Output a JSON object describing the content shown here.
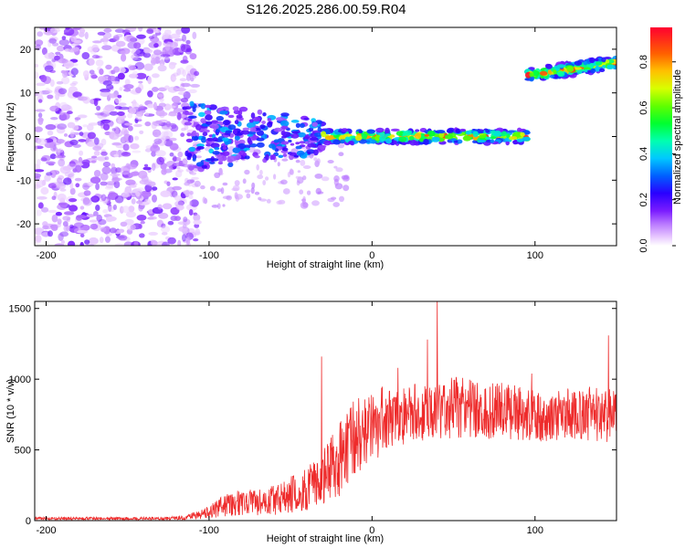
{
  "figure": {
    "title": "S126.2025.286.00.59.R04"
  },
  "chart_data": [
    {
      "type": "heatmap",
      "title": "S126.2025.286.00.59.R04",
      "xlabel": "Height of straight line (km)",
      "ylabel": "Frequency (Hz)",
      "xlim": [
        -207,
        150
      ],
      "ylim": [
        -25,
        25
      ],
      "xticks": [
        -200,
        -100,
        0,
        100
      ],
      "yticks": [
        -20,
        -10,
        0,
        10,
        20
      ],
      "colorbar": {
        "label": "Normalized spectral amplitude",
        "range": [
          0,
          0.95
        ],
        "ticks": [
          0.0,
          0.2,
          0.4,
          0.6,
          0.8
        ],
        "tick_labels": [
          "0.0",
          "0.2",
          "0.4",
          "0.6",
          "0.8"
        ]
      },
      "signal_ridge": [
        {
          "x_range": [
            -115,
            -30
          ],
          "freq_center": 0,
          "freq_spread": 8,
          "note": "scattered blobs"
        },
        {
          "x_range": [
            -30,
            95
          ],
          "freq_center": 0,
          "freq_spread": 1.5,
          "peak_amplitude": 0.9
        },
        {
          "x_range": [
            95,
            150
          ],
          "freq_start": 14,
          "freq_end": 17,
          "peak_amplitude": 0.9
        }
      ],
      "noise_region": {
        "x_range": [
          -207,
          -115
        ],
        "freq_range": [
          -25,
          25
        ]
      }
    },
    {
      "type": "line",
      "xlabel": "Height of straight line (km)",
      "ylabel": "SNR (10 * v/v)",
      "xlim": [
        -207,
        150
      ],
      "ylim": [
        0,
        1550
      ],
      "xticks": [
        -200,
        -100,
        0,
        100
      ],
      "yticks": [
        0,
        500,
        1000,
        1500
      ],
      "line_color": "#ee2b2b",
      "series": [
        {
          "name": "SNR",
          "x": [
            -207,
            -190,
            -170,
            -150,
            -130,
            -115,
            -100,
            -90,
            -80,
            -70,
            -60,
            -50,
            -40,
            -30,
            -25,
            -20,
            -15,
            -10,
            -5,
            0,
            10,
            20,
            30,
            40,
            50,
            60,
            70,
            80,
            90,
            100,
            110,
            120,
            130,
            140,
            150
          ],
          "y_mean": [
            15,
            15,
            15,
            15,
            15,
            20,
            60,
            110,
            130,
            130,
            150,
            180,
            230,
            300,
            380,
            430,
            520,
            580,
            640,
            680,
            720,
            740,
            770,
            790,
            800,
            800,
            770,
            780,
            760,
            740,
            730,
            760,
            760,
            740,
            750
          ],
          "y_noise": [
            10,
            10,
            10,
            10,
            10,
            15,
            45,
            80,
            90,
            95,
            110,
            130,
            160,
            190,
            230,
            260,
            280,
            280,
            270,
            260,
            240,
            220,
            210,
            220,
            220,
            210,
            200,
            200,
            190,
            180,
            170,
            180,
            190,
            200,
            200
          ],
          "spikes": [
            [
              -31,
              1160
            ],
            [
              16,
              1080
            ],
            [
              34,
              1280
            ],
            [
              40,
              1560
            ],
            [
              145,
              1310
            ],
            [
              98,
              1040
            ]
          ]
        }
      ]
    }
  ]
}
